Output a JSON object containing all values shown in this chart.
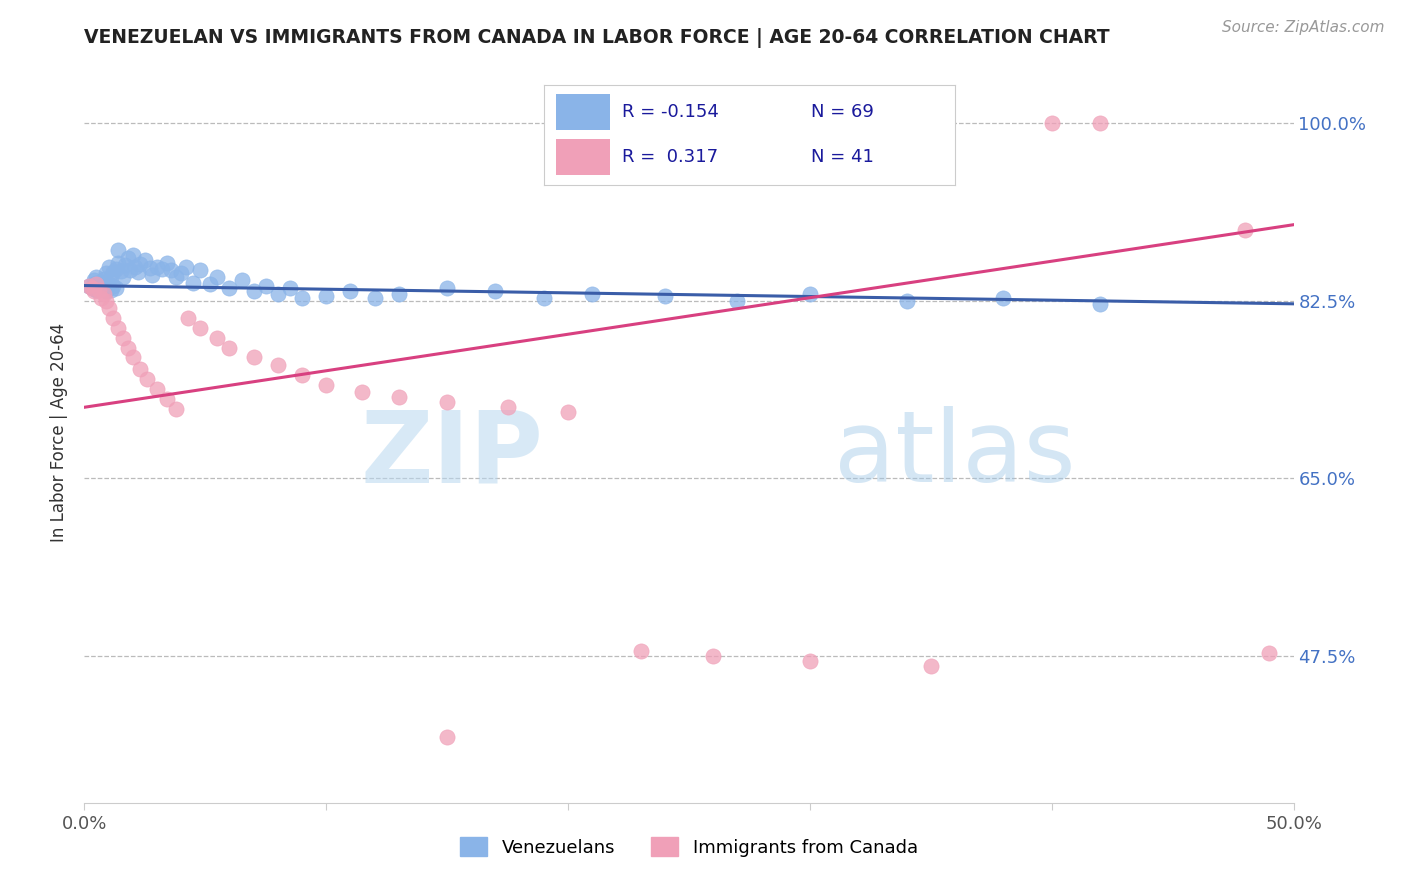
{
  "title": "VENEZUELAN VS IMMIGRANTS FROM CANADA IN LABOR FORCE | AGE 20-64 CORRELATION CHART",
  "source_text": "Source: ZipAtlas.com",
  "ylabel": "In Labor Force | Age 20-64",
  "xlim": [
    0.0,
    0.5
  ],
  "ylim": [
    0.33,
    1.06
  ],
  "xticks": [
    0.0,
    0.1,
    0.2,
    0.3,
    0.4,
    0.5
  ],
  "xticklabels": [
    "0.0%",
    "",
    "",
    "",
    "",
    "50.0%"
  ],
  "ytick_positions": [
    0.475,
    0.65,
    0.825,
    1.0
  ],
  "ytick_labels": [
    "47.5%",
    "65.0%",
    "82.5%",
    "100.0%"
  ],
  "blue_N": 69,
  "pink_N": 41,
  "blue_color": "#8ab4e8",
  "pink_color": "#f0a0b8",
  "blue_line_color": "#3a5da8",
  "pink_line_color": "#d84080",
  "legend_label_blue": "Venezuelans",
  "legend_label_pink": "Immigrants from Canada",
  "watermark_zip": "ZIP",
  "watermark_atlas": "atlas",
  "background_color": "#ffffff",
  "blue_line_x0": 0.0,
  "blue_line_y0": 0.84,
  "blue_line_x1": 0.5,
  "blue_line_y1": 0.822,
  "pink_line_x0": 0.0,
  "pink_line_y0": 0.72,
  "pink_line_x1": 0.5,
  "pink_line_y1": 0.9,
  "blue_x": [
    0.002,
    0.003,
    0.004,
    0.004,
    0.005,
    0.005,
    0.005,
    0.006,
    0.006,
    0.007,
    0.007,
    0.008,
    0.008,
    0.009,
    0.009,
    0.01,
    0.01,
    0.011,
    0.011,
    0.012,
    0.012,
    0.013,
    0.013,
    0.014,
    0.014,
    0.015,
    0.016,
    0.017,
    0.018,
    0.019,
    0.02,
    0.021,
    0.022,
    0.023,
    0.025,
    0.027,
    0.028,
    0.03,
    0.032,
    0.034,
    0.036,
    0.038,
    0.04,
    0.042,
    0.045,
    0.048,
    0.052,
    0.055,
    0.06,
    0.065,
    0.07,
    0.075,
    0.08,
    0.085,
    0.09,
    0.1,
    0.11,
    0.12,
    0.13,
    0.15,
    0.17,
    0.19,
    0.21,
    0.24,
    0.27,
    0.3,
    0.34,
    0.38,
    0.42
  ],
  "blue_y": [
    0.84,
    0.838,
    0.842,
    0.845,
    0.836,
    0.843,
    0.848,
    0.841,
    0.837,
    0.844,
    0.84,
    0.846,
    0.838,
    0.852,
    0.835,
    0.858,
    0.842,
    0.848,
    0.836,
    0.853,
    0.84,
    0.856,
    0.838,
    0.862,
    0.875,
    0.854,
    0.848,
    0.86,
    0.867,
    0.855,
    0.87,
    0.858,
    0.853,
    0.861,
    0.865,
    0.857,
    0.85,
    0.858,
    0.856,
    0.862,
    0.855,
    0.848,
    0.852,
    0.858,
    0.843,
    0.855,
    0.842,
    0.848,
    0.838,
    0.845,
    0.835,
    0.84,
    0.832,
    0.838,
    0.828,
    0.83,
    0.835,
    0.828,
    0.832,
    0.838,
    0.835,
    0.828,
    0.832,
    0.83,
    0.825,
    0.832,
    0.825,
    0.828,
    0.822
  ],
  "pink_x": [
    0.002,
    0.003,
    0.004,
    0.005,
    0.006,
    0.007,
    0.008,
    0.009,
    0.01,
    0.012,
    0.014,
    0.016,
    0.018,
    0.02,
    0.023,
    0.026,
    0.03,
    0.034,
    0.038,
    0.043,
    0.048,
    0.055,
    0.06,
    0.07,
    0.08,
    0.09,
    0.1,
    0.115,
    0.13,
    0.15,
    0.175,
    0.2,
    0.23,
    0.26,
    0.3,
    0.35,
    0.4,
    0.15,
    0.42,
    0.48,
    0.49
  ],
  "pink_y": [
    0.84,
    0.838,
    0.835,
    0.842,
    0.836,
    0.828,
    0.832,
    0.825,
    0.818,
    0.808,
    0.798,
    0.788,
    0.778,
    0.77,
    0.758,
    0.748,
    0.738,
    0.728,
    0.718,
    0.808,
    0.798,
    0.788,
    0.778,
    0.77,
    0.762,
    0.752,
    0.742,
    0.735,
    0.73,
    0.725,
    0.72,
    0.715,
    0.48,
    0.475,
    0.47,
    0.465,
    1.0,
    0.395,
    1.0,
    0.895,
    0.478
  ]
}
